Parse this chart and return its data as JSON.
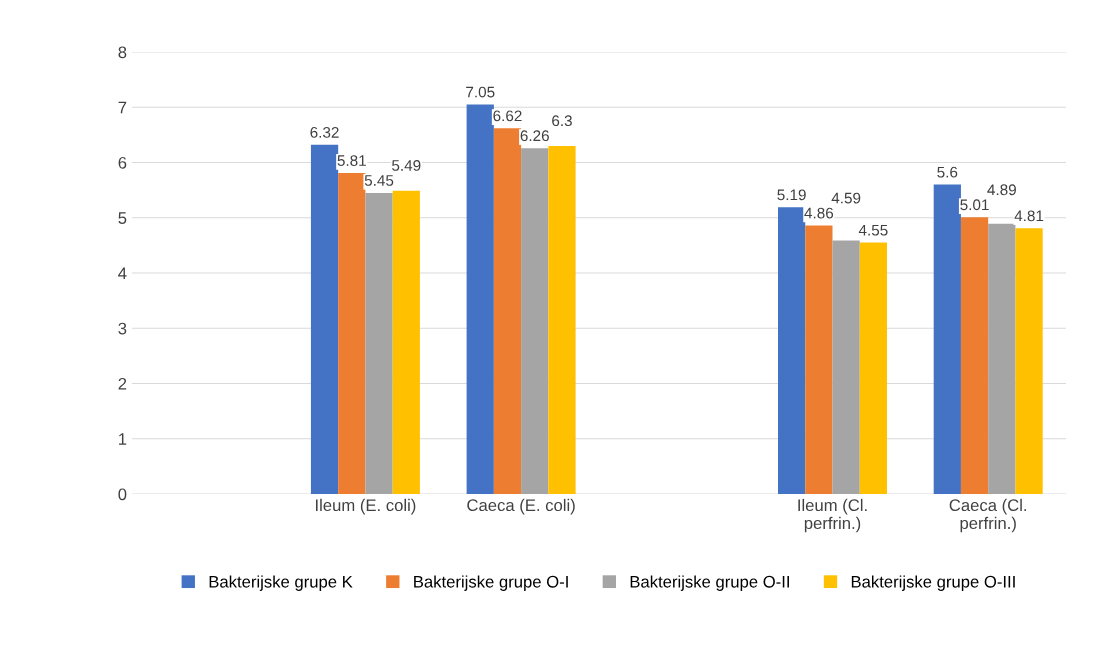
{
  "chart_data": {
    "type": "bar",
    "categories": [
      null,
      "Ileum (E. coli)",
      "Caeca (E. coli)",
      null,
      "Ileum (Cl.\nperfrin.)",
      "Caeca (Cl.\nperfrin.)"
    ],
    "series": [
      {
        "name": "Bakterijske grupe K",
        "color": "#4472c4",
        "values": [
          null,
          6.32,
          7.05,
          null,
          5.19,
          5.6
        ]
      },
      {
        "name": "Bakterijske grupe O-I",
        "color": "#ed7d31",
        "values": [
          null,
          5.81,
          6.62,
          null,
          4.86,
          5.01
        ]
      },
      {
        "name": "Bakterijske grupe O-II",
        "color": "#a5a5a5",
        "values": [
          null,
          5.45,
          6.26,
          null,
          4.59,
          4.89
        ]
      },
      {
        "name": "Bakterijske grupe O-III",
        "color": "#ffc000",
        "values": [
          null,
          5.49,
          6.3,
          null,
          4.55,
          4.81
        ]
      }
    ],
    "ylim": [
      0,
      8
    ],
    "yticks": [
      0,
      1,
      2,
      3,
      4,
      5,
      6,
      7,
      8
    ],
    "grid": "y",
    "legend": "bottom",
    "data_labels": true
  }
}
